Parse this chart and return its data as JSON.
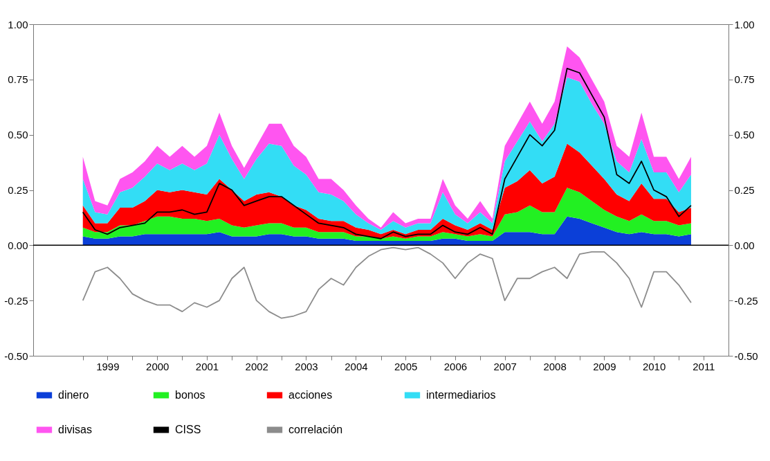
{
  "chart_data": {
    "type": "area",
    "stacked": true,
    "legend": "bottom",
    "x": [
      "1999-01-01",
      "1999-04-01",
      "1999-07-01",
      "1999-10-01",
      "2000-01-01",
      "2000-04-01",
      "2000-07-01",
      "2000-10-01",
      "2001-01-01",
      "2001-04-01",
      "2001-07-01",
      "2001-10-01",
      "2002-01-01",
      "2002-04-01",
      "2002-07-01",
      "2002-10-01",
      "2003-01-01",
      "2003-04-01",
      "2003-07-01",
      "2003-10-01",
      "2004-01-01",
      "2004-04-01",
      "2004-07-01",
      "2004-10-01",
      "2005-01-01",
      "2005-04-01",
      "2005-07-01",
      "2005-10-01",
      "2006-01-01",
      "2006-04-01",
      "2006-07-01",
      "2006-10-01",
      "2007-01-01",
      "2007-04-01",
      "2007-07-01",
      "2007-10-01",
      "2008-01-01",
      "2008-04-01",
      "2008-07-01",
      "2008-10-01",
      "2009-01-01",
      "2009-04-01",
      "2009-07-01",
      "2009-10-01",
      "2010-01-01",
      "2010-04-01",
      "2010-07-01",
      "2010-10-01",
      "2011-01-01",
      "2011-04-01"
    ],
    "series": [
      {
        "name": "dinero",
        "color": "#0b3fd8",
        "values": [
          0.04,
          0.03,
          0.03,
          0.04,
          0.04,
          0.05,
          0.05,
          0.05,
          0.05,
          0.05,
          0.05,
          0.06,
          0.04,
          0.04,
          0.04,
          0.05,
          0.05,
          0.04,
          0.04,
          0.03,
          0.03,
          0.03,
          0.02,
          0.02,
          0.02,
          0.02,
          0.02,
          0.02,
          0.02,
          0.03,
          0.03,
          0.02,
          0.02,
          0.02,
          0.06,
          0.06,
          0.06,
          0.05,
          0.05,
          0.13,
          0.12,
          0.1,
          0.08,
          0.06,
          0.05,
          0.06,
          0.05,
          0.05,
          0.04,
          0.05
        ]
      },
      {
        "name": "bonos",
        "color": "#22f022",
        "values": [
          0.04,
          0.03,
          0.03,
          0.05,
          0.05,
          0.06,
          0.08,
          0.08,
          0.07,
          0.07,
          0.06,
          0.06,
          0.05,
          0.04,
          0.05,
          0.05,
          0.05,
          0.04,
          0.04,
          0.03,
          0.03,
          0.03,
          0.02,
          0.02,
          0.01,
          0.02,
          0.01,
          0.02,
          0.02,
          0.03,
          0.02,
          0.02,
          0.03,
          0.02,
          0.08,
          0.09,
          0.12,
          0.1,
          0.1,
          0.13,
          0.12,
          0.1,
          0.08,
          0.07,
          0.06,
          0.08,
          0.06,
          0.06,
          0.05,
          0.05
        ]
      },
      {
        "name": "acciones",
        "color": "#ff0000",
        "values": [
          0.1,
          0.04,
          0.04,
          0.08,
          0.08,
          0.09,
          0.12,
          0.11,
          0.13,
          0.12,
          0.12,
          0.18,
          0.16,
          0.12,
          0.14,
          0.14,
          0.12,
          0.1,
          0.08,
          0.06,
          0.05,
          0.05,
          0.04,
          0.03,
          0.02,
          0.03,
          0.02,
          0.03,
          0.03,
          0.06,
          0.04,
          0.03,
          0.05,
          0.03,
          0.12,
          0.14,
          0.16,
          0.13,
          0.16,
          0.2,
          0.18,
          0.16,
          0.14,
          0.1,
          0.09,
          0.14,
          0.1,
          0.1,
          0.06,
          0.07
        ]
      },
      {
        "name": "intermediarios",
        "color": "#33ddf5",
        "values": [
          0.12,
          0.05,
          0.04,
          0.07,
          0.09,
          0.11,
          0.12,
          0.1,
          0.12,
          0.1,
          0.14,
          0.2,
          0.14,
          0.1,
          0.16,
          0.22,
          0.23,
          0.18,
          0.16,
          0.12,
          0.12,
          0.09,
          0.06,
          0.03,
          0.02,
          0.04,
          0.03,
          0.03,
          0.03,
          0.12,
          0.05,
          0.03,
          0.05,
          0.03,
          0.12,
          0.18,
          0.22,
          0.19,
          0.24,
          0.3,
          0.32,
          0.28,
          0.25,
          0.15,
          0.13,
          0.2,
          0.12,
          0.12,
          0.09,
          0.15
        ]
      },
      {
        "name": "divisas",
        "color": "#ff55f0",
        "values": [
          0.1,
          0.05,
          0.04,
          0.06,
          0.07,
          0.07,
          0.08,
          0.06,
          0.08,
          0.06,
          0.08,
          0.1,
          0.06,
          0.05,
          0.06,
          0.09,
          0.1,
          0.09,
          0.08,
          0.06,
          0.07,
          0.05,
          0.04,
          0.02,
          0.01,
          0.04,
          0.02,
          0.02,
          0.02,
          0.06,
          0.04,
          0.02,
          0.05,
          0.02,
          0.07,
          0.08,
          0.09,
          0.08,
          0.1,
          0.14,
          0.11,
          0.11,
          0.1,
          0.07,
          0.07,
          0.12,
          0.07,
          0.07,
          0.06,
          0.08
        ]
      },
      {
        "name": "CISS",
        "type": "line",
        "color": "#000000",
        "values": [
          0.15,
          0.07,
          0.05,
          0.08,
          0.09,
          0.1,
          0.15,
          0.15,
          0.16,
          0.14,
          0.15,
          0.28,
          0.25,
          0.18,
          0.2,
          0.22,
          0.22,
          0.18,
          0.14,
          0.1,
          0.09,
          0.08,
          0.05,
          0.04,
          0.03,
          0.06,
          0.04,
          0.05,
          0.05,
          0.09,
          0.06,
          0.05,
          0.08,
          0.05,
          0.3,
          0.4,
          0.5,
          0.45,
          0.52,
          0.8,
          0.78,
          0.68,
          0.58,
          0.32,
          0.28,
          0.38,
          0.25,
          0.22,
          0.13,
          0.18
        ]
      },
      {
        "name": "correlación",
        "type": "line",
        "color": "#8c8c8c",
        "values": [
          -0.25,
          -0.12,
          -0.1,
          -0.15,
          -0.22,
          -0.25,
          -0.27,
          -0.27,
          -0.3,
          -0.26,
          -0.28,
          -0.25,
          -0.15,
          -0.1,
          -0.25,
          -0.3,
          -0.33,
          -0.32,
          -0.3,
          -0.2,
          -0.15,
          -0.18,
          -0.1,
          -0.05,
          -0.02,
          -0.01,
          -0.02,
          -0.01,
          -0.04,
          -0.08,
          -0.15,
          -0.08,
          -0.04,
          -0.06,
          -0.25,
          -0.15,
          -0.15,
          -0.12,
          -0.1,
          -0.15,
          -0.04,
          -0.03,
          -0.03,
          -0.08,
          -0.15,
          -0.28,
          -0.12,
          -0.12,
          -0.18,
          -0.26
        ]
      }
    ],
    "ref_lines": [
      {
        "axis": "y",
        "value": 0,
        "color": "#000000"
      }
    ],
    "xlim": [
      "1998-01-01",
      "2012-01-01"
    ],
    "xticks": [
      {
        "value": "1999-01-01",
        "label": null
      },
      {
        "value": "1999-07-01",
        "label": "1999"
      },
      {
        "value": "2000-01-01",
        "label": null
      },
      {
        "value": "2000-07-01",
        "label": "2000"
      },
      {
        "value": "2001-01-01",
        "label": null
      },
      {
        "value": "2001-07-01",
        "label": "2001"
      },
      {
        "value": "2002-01-01",
        "label": null
      },
      {
        "value": "2002-07-01",
        "label": "2002"
      },
      {
        "value": "2003-01-01",
        "label": null
      },
      {
        "value": "2003-07-01",
        "label": "2003"
      },
      {
        "value": "2004-01-01",
        "label": null
      },
      {
        "value": "2004-07-01",
        "label": "2004"
      },
      {
        "value": "2005-01-01",
        "label": null
      },
      {
        "value": "2005-07-01",
        "label": "2005"
      },
      {
        "value": "2006-01-01",
        "label": null
      },
      {
        "value": "2006-07-01",
        "label": "2006"
      },
      {
        "value": "2007-01-01",
        "label": null
      },
      {
        "value": "2007-07-01",
        "label": "2007"
      },
      {
        "value": "2008-01-01",
        "label": null
      },
      {
        "value": "2008-07-01",
        "label": "2008"
      },
      {
        "value": "2009-01-01",
        "label": null
      },
      {
        "value": "2009-07-01",
        "label": "2009"
      },
      {
        "value": "2010-01-01",
        "label": null
      },
      {
        "value": "2010-07-01",
        "label": "2010"
      },
      {
        "value": "2011-01-01",
        "label": null
      },
      {
        "value": "2011-07-01",
        "label": "2011"
      }
    ],
    "ylim": [
      -0.5,
      1
    ],
    "yticks": [
      {
        "value": -0.5,
        "label": "-0.50"
      },
      {
        "value": -0.25,
        "label": "-0.25"
      },
      {
        "value": 0,
        "label": "0.00"
      },
      {
        "value": 0.25,
        "label": "0.25"
      },
      {
        "value": 0.5,
        "label": "0.50"
      },
      {
        "value": 0.75,
        "label": "0.75"
      },
      {
        "value": 1,
        "label": "1.00"
      }
    ],
    "y2lim": [
      -0.5,
      1
    ],
    "y2ticks": [
      {
        "value": -0.5,
        "label": "-0.50"
      },
      {
        "value": -0.25,
        "label": "-0.25"
      },
      {
        "value": 0,
        "label": "0.00"
      },
      {
        "value": 0.25,
        "label": "0.25"
      },
      {
        "value": 0.5,
        "label": "0.50"
      },
      {
        "value": 0.75,
        "label": "0.75"
      },
      {
        "value": 1,
        "label": "1.00"
      }
    ]
  }
}
